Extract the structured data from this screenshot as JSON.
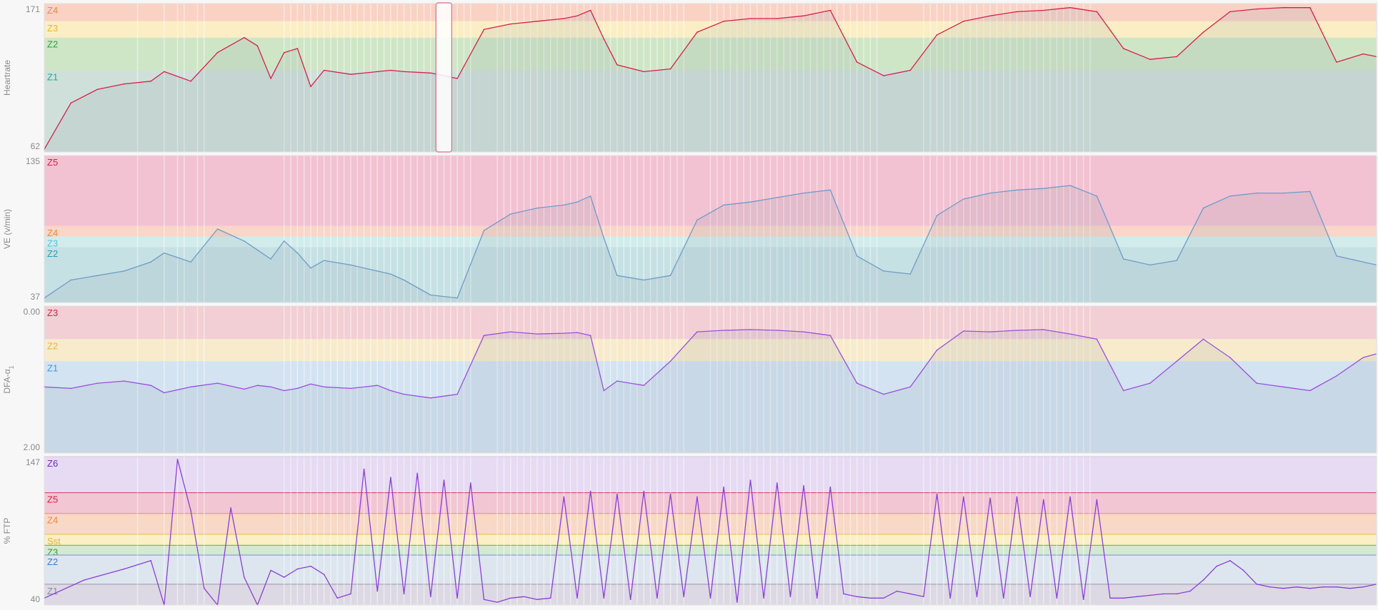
{
  "chart_data": [
    {
      "type": "area",
      "ylabel": "Heartrate",
      "ylim": [
        62,
        171
      ],
      "tick_labels": [
        "171",
        "62"
      ],
      "zones": [
        {
          "label": "Z4",
          "from": 158,
          "to": 171,
          "color": "#f9d2c4",
          "label_color": "#ef8a3c"
        },
        {
          "label": "Z3",
          "from": 146,
          "to": 158,
          "color": "#fbeec4",
          "label_color": "#e8b43a"
        },
        {
          "label": "Z2",
          "from": 122,
          "to": 146,
          "color": "#cfe6c6",
          "label_color": "#2e9e3a"
        },
        {
          "label": "Z1",
          "from": 62,
          "to": 122,
          "color": "#cfe0da",
          "label_color": "#2aa39a"
        }
      ],
      "series": [
        {
          "color": "#d81e4a",
          "x": [
            0,
            2,
            4,
            6,
            8,
            9,
            11,
            13,
            15,
            16,
            17,
            18,
            19,
            20,
            21,
            23,
            25,
            26,
            27,
            29,
            31,
            33,
            35,
            37,
            39,
            40,
            41,
            42,
            43,
            45,
            47,
            49,
            51,
            53,
            55,
            57,
            59,
            61,
            63,
            65,
            67,
            69,
            71,
            73,
            75,
            77,
            79,
            81,
            83,
            85,
            87,
            89,
            91,
            93,
            95,
            97,
            99,
            100
          ],
          "y": [
            64,
            98,
            108,
            112,
            114,
            121,
            114,
            135,
            146,
            140,
            116,
            135,
            138,
            110,
            122,
            119,
            121,
            122,
            121,
            120,
            116,
            152,
            156,
            158,
            160,
            162,
            166,
            145,
            126,
            121,
            123,
            150,
            158,
            160,
            160,
            162,
            166,
            128,
            118,
            122,
            148,
            158,
            162,
            165,
            166,
            168,
            165,
            138,
            130,
            132,
            150,
            165,
            167,
            168,
            168,
            128,
            134,
            132
          ]
        }
      ]
    },
    {
      "type": "area",
      "ylabel": "VE (v/min)",
      "ylim": [
        37,
        135
      ],
      "tick_labels": [
        "135",
        "37"
      ],
      "zones": [
        {
          "label": "Z5",
          "from": 88,
          "to": 135,
          "color": "#f2c2d2",
          "label_color": "#d81e4a"
        },
        {
          "label": "Z4",
          "from": 81,
          "to": 88,
          "color": "#f9d6c8",
          "label_color": "#ef8a3c"
        },
        {
          "label": "Z3",
          "from": 74,
          "to": 81,
          "color": "#d2ecec",
          "label_color": "#4fc3d9"
        },
        {
          "label": "Z2",
          "from": 37,
          "to": 74,
          "color": "#c6e1e4",
          "label_color": "#2a9ab0"
        }
      ],
      "series": [
        {
          "color": "#6f9bc8",
          "x": [
            0,
            2,
            4,
            6,
            8,
            9,
            11,
            13,
            15,
            16,
            17,
            18,
            19,
            20,
            21,
            23,
            25,
            26,
            27,
            29,
            31,
            33,
            35,
            37,
            39,
            40,
            41,
            42,
            43,
            45,
            47,
            49,
            51,
            53,
            55,
            57,
            59,
            61,
            63,
            65,
            67,
            69,
            71,
            73,
            75,
            77,
            79,
            81,
            83,
            85,
            87,
            89,
            91,
            93,
            95,
            97,
            99,
            100
          ],
          "y": [
            40,
            52,
            55,
            58,
            64,
            70,
            64,
            86,
            78,
            72,
            66,
            78,
            70,
            60,
            65,
            62,
            58,
            56,
            52,
            42,
            40,
            85,
            96,
            100,
            102,
            104,
            108,
            80,
            55,
            52,
            55,
            92,
            102,
            104,
            107,
            110,
            112,
            68,
            58,
            56,
            95,
            106,
            110,
            112,
            113,
            115,
            108,
            66,
            62,
            65,
            100,
            108,
            110,
            110,
            111,
            68,
            64,
            62
          ]
        }
      ]
    },
    {
      "type": "area",
      "ylabel": "DFA-α",
      "ylabel_subscript": "1",
      "ylim": [
        0.0,
        2.0
      ],
      "y_inverted": true,
      "tick_labels": [
        "0.00",
        "2.00"
      ],
      "zones": [
        {
          "label": "Z3",
          "from": 0.0,
          "to": 0.45,
          "color": "#f2cfd4",
          "label_color": "#d81e4a"
        },
        {
          "label": "Z2",
          "from": 0.45,
          "to": 0.75,
          "color": "#f8ebcc",
          "label_color": "#e8b43a"
        },
        {
          "label": "Z1",
          "from": 0.75,
          "to": 2.0,
          "color": "#d3e3f1",
          "label_color": "#3a9ad9"
        }
      ],
      "series": [
        {
          "color": "#9a4fe0",
          "x": [
            0,
            2,
            4,
            6,
            8,
            9,
            11,
            13,
            15,
            16,
            17,
            18,
            19,
            20,
            21,
            23,
            25,
            26,
            27,
            29,
            31,
            33,
            35,
            37,
            39,
            40,
            41,
            42,
            43,
            45,
            47,
            49,
            51,
            53,
            55,
            57,
            59,
            61,
            63,
            65,
            67,
            69,
            71,
            73,
            75,
            77,
            79,
            81,
            83,
            85,
            87,
            89,
            91,
            93,
            95,
            97,
            99,
            100
          ],
          "y": [
            1.1,
            1.12,
            1.05,
            1.02,
            1.08,
            1.18,
            1.1,
            1.05,
            1.13,
            1.08,
            1.1,
            1.15,
            1.12,
            1.06,
            1.1,
            1.12,
            1.08,
            1.15,
            1.2,
            1.25,
            1.2,
            0.4,
            0.35,
            0.38,
            0.37,
            0.36,
            0.4,
            1.15,
            1.02,
            1.08,
            0.75,
            0.35,
            0.33,
            0.32,
            0.33,
            0.35,
            0.4,
            1.05,
            1.2,
            1.1,
            0.6,
            0.34,
            0.35,
            0.33,
            0.32,
            0.38,
            0.45,
            1.15,
            1.05,
            0.75,
            0.45,
            0.7,
            1.05,
            1.1,
            1.15,
            0.95,
            0.7,
            0.65
          ]
        }
      ]
    },
    {
      "type": "line",
      "ylabel": "% FTP",
      "ylim": [
        40,
        147
      ],
      "tick_labels": [
        "147",
        "40"
      ],
      "zones": [
        {
          "label": "Z6",
          "from": 121,
          "to": 147,
          "color": "#e6dbf3",
          "label_color": "#6a2fb8",
          "line": "#b48bd9"
        },
        {
          "label": "Z5",
          "from": 106,
          "to": 121,
          "color": "#f3c6d4",
          "label_color": "#d81e4a",
          "line": "#d84a6a"
        },
        {
          "label": "Z4",
          "from": 91,
          "to": 106,
          "color": "#f8d8c6",
          "label_color": "#ef8a3c",
          "line": "#e89a6a"
        },
        {
          "label": "Sst",
          "from": 83,
          "to": 91,
          "color": "#fbefc6",
          "label_color": "#e8b43a",
          "line": "#e8c46a"
        },
        {
          "label": "Z3",
          "from": 76,
          "to": 83,
          "color": "#d3ead2",
          "label_color": "#2e9e3a",
          "line": "#6bbf6b"
        },
        {
          "label": "Z2",
          "from": 55,
          "to": 76,
          "color": "#dde6ef",
          "label_color": "#3a7ad9",
          "line": "#8aa4c8"
        },
        {
          "label": "Z1",
          "from": 40,
          "to": 55,
          "color": "#dcd9e4",
          "label_color": "#8a8a99",
          "line": "#a8a4b4"
        }
      ],
      "series": [
        {
          "color": "#8a3fd8",
          "x": [
            0,
            3,
            6,
            8,
            9,
            10,
            11,
            12,
            13,
            14,
            15,
            16,
            17,
            18,
            19,
            20,
            21,
            22,
            23,
            24,
            25,
            26,
            27,
            28,
            29,
            30,
            31,
            32,
            33,
            34,
            35,
            36,
            37,
            38,
            39,
            40,
            41,
            42,
            43,
            44,
            45,
            46,
            47,
            48,
            49,
            50,
            51,
            52,
            53,
            54,
            55,
            56,
            57,
            58,
            59,
            60,
            61,
            62,
            63,
            64,
            65,
            66,
            67,
            68,
            69,
            70,
            71,
            72,
            73,
            74,
            75,
            76,
            77,
            78,
            79,
            80,
            81,
            82,
            83,
            84,
            85,
            86,
            87,
            88,
            89,
            90,
            91,
            92,
            93,
            94,
            95,
            96,
            97,
            98,
            99,
            100
          ],
          "y": [
            45,
            58,
            66,
            72,
            40,
            145,
            108,
            52,
            40,
            110,
            60,
            40,
            65,
            60,
            66,
            68,
            62,
            45,
            48,
            138,
            50,
            132,
            48,
            135,
            46,
            130,
            45,
            128,
            44,
            42,
            45,
            46,
            44,
            45,
            118,
            45,
            122,
            45,
            120,
            44,
            122,
            45,
            120,
            46,
            118,
            45,
            125,
            42,
            130,
            45,
            128,
            46,
            126,
            45,
            125,
            48,
            46,
            45,
            45,
            50,
            48,
            46,
            120,
            45,
            118,
            46,
            117,
            45,
            118,
            46,
            116,
            45,
            118,
            44,
            116,
            45,
            45,
            46,
            47,
            48,
            48,
            50,
            58,
            68,
            72,
            65,
            55,
            53,
            52,
            53,
            52,
            53,
            53,
            52,
            53,
            55
          ]
        }
      ]
    }
  ]
}
